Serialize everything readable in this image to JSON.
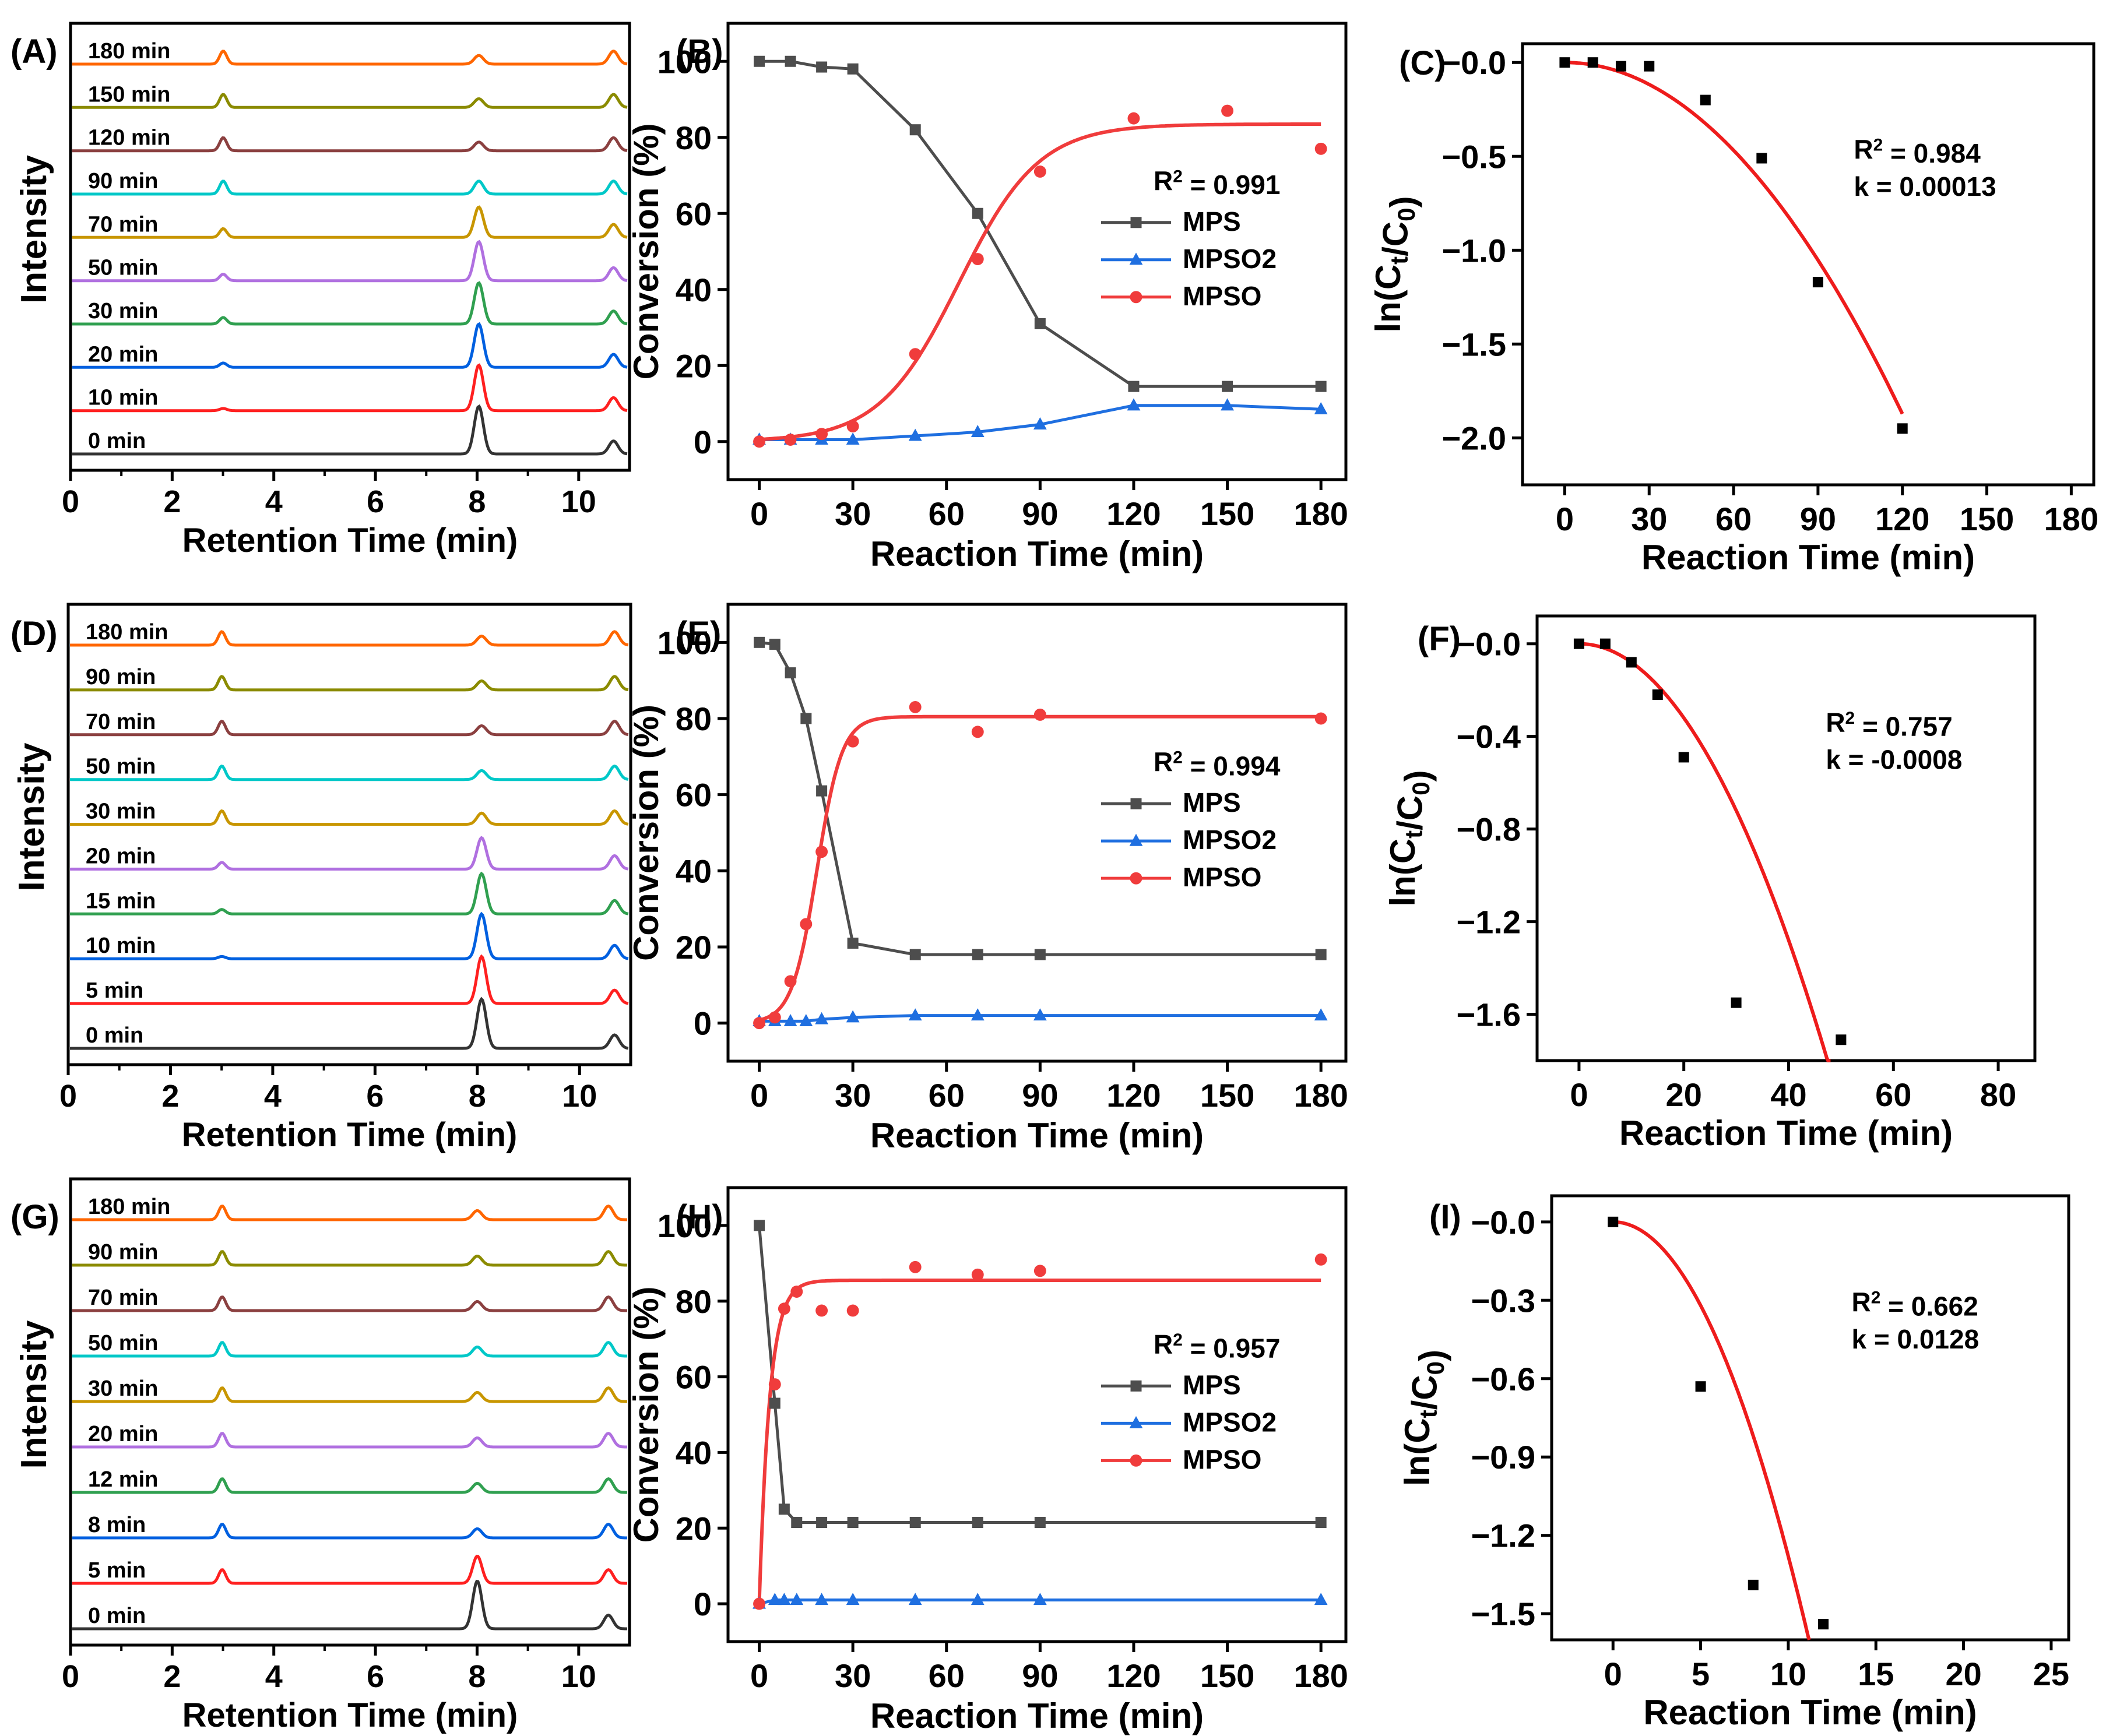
{
  "chart_data": [
    {
      "id": "A",
      "panel_label": "(A)",
      "type": "line",
      "title": "",
      "xlabel": "Retention Time (min)",
      "ylabel": "Intensity",
      "xlim": [
        0,
        11
      ],
      "xticks": [
        0,
        2,
        4,
        6,
        8,
        10
      ],
      "trace_labels": [
        "180 min",
        "150 min",
        "120 min",
        "90 min",
        "70 min",
        "50 min",
        "30 min",
        "20 min",
        "10 min",
        "0 min"
      ],
      "trace_colors": [
        "#ff6600",
        "#8b8b00",
        "#8b4040",
        "#00c8c8",
        "#c89600",
        "#b070e0",
        "#30a050",
        "#0060e0",
        "#ff2020",
        "#333333"
      ],
      "peak_positions": [
        2.97,
        8.0,
        10.65
      ],
      "peak_heights": [
        [
          0.6,
          0.4,
          0.6
        ],
        [
          0.6,
          0.4,
          0.6
        ],
        [
          0.6,
          0.4,
          0.6
        ],
        [
          0.6,
          0.6,
          0.6
        ],
        [
          0.4,
          1.4,
          0.6
        ],
        [
          0.3,
          1.8,
          0.6
        ],
        [
          0.3,
          1.9,
          0.6
        ],
        [
          0.2,
          2.0,
          0.6
        ],
        [
          0.1,
          2.1,
          0.6
        ],
        [
          0.0,
          2.2,
          0.6
        ]
      ]
    },
    {
      "id": "B",
      "panel_label": "(B)",
      "type": "line",
      "title": "",
      "xlabel": "Reaction Time (min)",
      "ylabel": "Conversion (%)",
      "xlim": [
        -10,
        188
      ],
      "ylim": [
        -10,
        110
      ],
      "xticks": [
        0,
        30,
        60,
        90,
        120,
        150,
        180
      ],
      "yticks": [
        0,
        20,
        40,
        60,
        80,
        100
      ],
      "r2_text": "R² = 0.991",
      "legend_position": "center-right",
      "series": [
        {
          "name": "MPS",
          "color": "#4d4d4d",
          "marker": "square",
          "x": [
            0,
            10,
            20,
            30,
            50,
            70,
            90,
            120,
            150,
            180
          ],
          "y": [
            100,
            100,
            98.5,
            98,
            82,
            60,
            31,
            14.5,
            14.5,
            14.5
          ]
        },
        {
          "name": "MPSO2",
          "color": "#1f6fe0",
          "marker": "triangle",
          "x": [
            0,
            10,
            20,
            30,
            50,
            70,
            90,
            120,
            150,
            180
          ],
          "y": [
            0.5,
            0.5,
            0.5,
            0.5,
            1.5,
            2.5,
            4.5,
            9.5,
            9.5,
            8.5
          ]
        },
        {
          "name": "MPSO",
          "color": "#f03c3c",
          "marker": "circle",
          "x": [
            0,
            10,
            20,
            30,
            50,
            70,
            90,
            120,
            150,
            180
          ],
          "y": [
            0,
            0.5,
            2,
            4,
            23,
            48,
            71,
            85,
            87,
            77
          ]
        }
      ],
      "fit_curve": {
        "series": "MPSO",
        "model": "sigmoid",
        "A": 83.5,
        "x0": 64,
        "k": 0.078
      }
    },
    {
      "id": "C",
      "panel_label": "(C)",
      "type": "scatter",
      "title": "",
      "xlabel": "Reaction Time (min)",
      "ylabel": "ln(Ct/C0)",
      "xlim": [
        -15,
        188
      ],
      "ylim": [
        -2.25,
        0.1
      ],
      "xticks": [
        0,
        30,
        60,
        90,
        120,
        150,
        180
      ],
      "yticks": [
        0.0,
        -0.5,
        -1.0,
        -1.5,
        -2.0
      ],
      "ytick_labels": [
        "−0.0",
        "−0.5",
        "−1.0",
        "−1.5",
        "−2.0"
      ],
      "annotation": [
        "R² = 0.984",
        "k = 0.00013"
      ],
      "x": [
        0,
        10,
        20,
        30,
        50,
        70,
        90,
        120
      ],
      "y": [
        0,
        0,
        -0.02,
        -0.02,
        -0.2,
        -0.51,
        -1.17,
        -1.95
      ],
      "fit_curve": {
        "model": "quadratic",
        "coef": -0.00013,
        "x_range": [
          0,
          120
        ]
      }
    },
    {
      "id": "D",
      "panel_label": "(D)",
      "type": "line",
      "title": "",
      "xlabel": "Retention Time (min)",
      "ylabel": "Intensity",
      "xlim": [
        0,
        11
      ],
      "xticks": [
        0,
        2,
        4,
        6,
        8,
        10
      ],
      "trace_labels": [
        "180 min",
        "90 min",
        "70 min",
        "50 min",
        "30 min",
        "20 min",
        "15 min",
        "10 min",
        "5 min",
        "0 min"
      ],
      "trace_colors": [
        "#ff6600",
        "#8b8b00",
        "#8b4040",
        "#00c8c8",
        "#c89600",
        "#b070e0",
        "#30a050",
        "#0060e0",
        "#ff2020",
        "#333333"
      ],
      "peak_positions": [
        2.97,
        8.05,
        10.65
      ],
      "peak_heights": [
        [
          0.6,
          0.4,
          0.6
        ],
        [
          0.6,
          0.4,
          0.6
        ],
        [
          0.6,
          0.4,
          0.6
        ],
        [
          0.6,
          0.4,
          0.6
        ],
        [
          0.6,
          0.5,
          0.6
        ],
        [
          0.3,
          1.4,
          0.6
        ],
        [
          0.2,
          1.8,
          0.6
        ],
        [
          0.1,
          2.0,
          0.6
        ],
        [
          0.0,
          2.1,
          0.6
        ],
        [
          0.0,
          2.2,
          0.6
        ]
      ]
    },
    {
      "id": "E",
      "panel_label": "(E)",
      "type": "line",
      "title": "",
      "xlabel": "Reaction Time (min)",
      "ylabel": "Conversion (%)",
      "xlim": [
        -10,
        188
      ],
      "ylim": [
        -10,
        110
      ],
      "xticks": [
        0,
        30,
        60,
        90,
        120,
        150,
        180
      ],
      "yticks": [
        0,
        20,
        40,
        60,
        80,
        100
      ],
      "r2_text": "R² = 0.994",
      "legend_position": "center-right",
      "series": [
        {
          "name": "MPS",
          "color": "#4d4d4d",
          "marker": "square",
          "x": [
            0,
            5,
            10,
            15,
            20,
            30,
            50,
            70,
            90,
            180
          ],
          "y": [
            100,
            99.5,
            92,
            80,
            61,
            21,
            18,
            18,
            18,
            18
          ]
        },
        {
          "name": "MPSO2",
          "color": "#1f6fe0",
          "marker": "triangle",
          "x": [
            0,
            5,
            10,
            15,
            20,
            30,
            50,
            70,
            90,
            180
          ],
          "y": [
            0.5,
            0.5,
            0.5,
            0.5,
            1,
            1.5,
            2,
            2,
            2,
            2
          ]
        },
        {
          "name": "MPSO",
          "color": "#f03c3c",
          "marker": "circle",
          "x": [
            0,
            5,
            10,
            15,
            20,
            30,
            50,
            70,
            90,
            180
          ],
          "y": [
            0,
            1.5,
            11,
            26,
            45,
            74,
            83,
            76.5,
            81,
            80
          ]
        }
      ],
      "fit_curve": {
        "series": "MPSO",
        "model": "sigmoid",
        "A": 80.5,
        "x0": 18.5,
        "k": 0.25
      }
    },
    {
      "id": "F",
      "panel_label": "(F)",
      "type": "scatter",
      "title": "",
      "xlabel": "Reaction Time (min)",
      "ylabel": "ln(Ct/C0)",
      "xlim": [
        -8,
        87
      ],
      "ylim": [
        -1.8,
        0.12
      ],
      "xticks": [
        0,
        20,
        40,
        60,
        80
      ],
      "yticks": [
        0.0,
        -0.4,
        -0.8,
        -1.2,
        -1.6
      ],
      "ytick_labels": [
        "−0.0",
        "−0.4",
        "−0.8",
        "−1.2",
        "−1.6"
      ],
      "annotation": [
        "R² = 0.757",
        "k = -0.0008"
      ],
      "x": [
        0,
        5,
        10,
        15,
        20,
        30,
        50
      ],
      "y": [
        0,
        0,
        -0.08,
        -0.22,
        -0.49,
        -1.55,
        -1.71
      ],
      "fit_curve": {
        "model": "quadratic",
        "coef": -0.0008,
        "x_range": [
          0,
          48
        ]
      }
    },
    {
      "id": "G",
      "panel_label": "(G)",
      "type": "line",
      "title": "",
      "xlabel": "Retention Time (min)",
      "ylabel": "Intensity",
      "xlim": [
        0,
        11
      ],
      "xticks": [
        0,
        2,
        4,
        6,
        8,
        10
      ],
      "trace_labels": [
        "180 min",
        "90 min",
        "70 min",
        "50 min",
        "30 min",
        "20 min",
        "12 min",
        "8 min",
        "5 min",
        "0 min"
      ],
      "trace_colors": [
        "#ff6600",
        "#8b8b00",
        "#8b4040",
        "#00c8c8",
        "#c89600",
        "#b070e0",
        "#30a050",
        "#0060e0",
        "#ff2020",
        "#333333"
      ],
      "peak_positions": [
        2.95,
        7.97,
        10.55
      ],
      "peak_heights": [
        [
          0.6,
          0.4,
          0.6
        ],
        [
          0.6,
          0.4,
          0.6
        ],
        [
          0.6,
          0.4,
          0.6
        ],
        [
          0.6,
          0.4,
          0.6
        ],
        [
          0.6,
          0.4,
          0.6
        ],
        [
          0.6,
          0.4,
          0.6
        ],
        [
          0.6,
          0.4,
          0.6
        ],
        [
          0.6,
          0.4,
          0.6
        ],
        [
          0.6,
          1.2,
          0.6
        ],
        [
          0.0,
          2.1,
          0.6
        ]
      ]
    },
    {
      "id": "H",
      "panel_label": "(H)",
      "type": "line",
      "title": "",
      "xlabel": "Reaction Time (min)",
      "ylabel": "Conversion (%)",
      "xlim": [
        -10,
        188
      ],
      "ylim": [
        -10,
        110
      ],
      "xticks": [
        0,
        30,
        60,
        90,
        120,
        150,
        180
      ],
      "yticks": [
        0,
        20,
        40,
        60,
        80,
        100
      ],
      "r2_text": "R² = 0.957",
      "legend_position": "center-right",
      "series": [
        {
          "name": "MPS",
          "color": "#4d4d4d",
          "marker": "square",
          "x": [
            0,
            5,
            8,
            12,
            20,
            30,
            50,
            70,
            90,
            180
          ],
          "y": [
            100,
            53,
            25,
            21.5,
            21.5,
            21.5,
            21.5,
            21.5,
            21.5,
            21.5
          ]
        },
        {
          "name": "MPSO2",
          "color": "#1f6fe0",
          "marker": "triangle",
          "x": [
            0,
            5,
            8,
            12,
            20,
            30,
            50,
            70,
            90,
            180
          ],
          "y": [
            0,
            1,
            1,
            1,
            1,
            1,
            1,
            1,
            1,
            1
          ]
        },
        {
          "name": "MPSO",
          "color": "#f03c3c",
          "marker": "circle",
          "x": [
            0,
            5,
            8,
            12,
            20,
            30,
            50,
            70,
            90,
            180
          ],
          "y": [
            0,
            58,
            78,
            82.5,
            77.5,
            77.5,
            89,
            87,
            88,
            91
          ]
        }
      ],
      "fit_curve": {
        "series": "MPSO",
        "model": "exponential-rise",
        "A": 85.5,
        "k": 0.3
      }
    },
    {
      "id": "I",
      "panel_label": "(I)",
      "type": "scatter",
      "title": "",
      "xlabel": "Reaction Time (min)",
      "ylabel": "ln(Ct/C0)",
      "xlim": [
        -3.5,
        26
      ],
      "ylim": [
        -1.6,
        0.1
      ],
      "xticks": [
        0,
        5,
        10,
        15,
        20,
        25
      ],
      "yticks": [
        0.0,
        -0.3,
        -0.6,
        -0.9,
        -1.2,
        -1.5
      ],
      "ytick_labels": [
        "−0.0",
        "−0.3",
        "−0.6",
        "−0.9",
        "−1.2",
        "−1.5"
      ],
      "annotation": [
        "R² = 0.662",
        "k = 0.0128"
      ],
      "x": [
        0,
        5,
        8,
        12
      ],
      "y": [
        0,
        -0.63,
        -1.39,
        -1.54
      ],
      "fit_curve": {
        "model": "quadratic",
        "coef": -0.0128,
        "x_range": [
          0,
          11.2
        ]
      }
    }
  ]
}
